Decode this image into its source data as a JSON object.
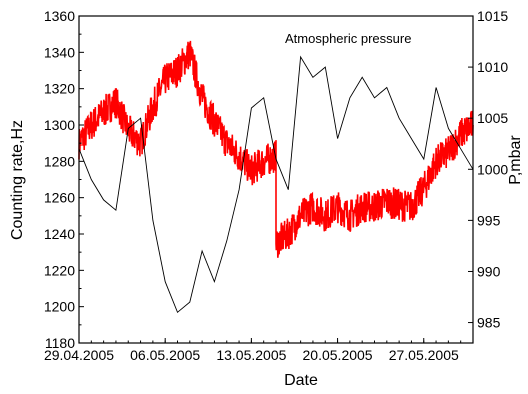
{
  "chart_data": {
    "type": "line",
    "title": "",
    "xlabel": "Date",
    "ylabel_left": "Counting rate,Hz",
    "ylabel_right": "P,mbar",
    "annotation": "Atmospheric pressure",
    "xlim": [
      "2005-04-29",
      "2005-05-31"
    ],
    "ylim_left": [
      1180,
      1360
    ],
    "ylim_right": [
      983,
      1015
    ],
    "x_tick_labels": [
      "29.04.2005",
      "06.05.2005",
      "13.05.2005",
      "20.05.2005",
      "27.05.2005"
    ],
    "x_ticks": [
      "2005-04-29",
      "2005-05-06",
      "2005-05-13",
      "2005-05-20",
      "2005-05-27"
    ],
    "y_left_ticks": [
      1180,
      1200,
      1220,
      1240,
      1260,
      1280,
      1300,
      1320,
      1340,
      1360
    ],
    "y_right_ticks": [
      985,
      990,
      995,
      1000,
      1005,
      1010,
      1015
    ],
    "grid": false,
    "series": [
      {
        "axis": "left",
        "color": "#ff0000",
        "noise": 9,
        "x": [
          "2005-04-29",
          "2005-04-30",
          "2005-05-01",
          "2005-05-02",
          "2005-05-03",
          "2005-05-04",
          "2005-05-05",
          "2005-05-06",
          "2005-05-07",
          "2005-05-08",
          "2005-05-09",
          "2005-05-10",
          "2005-05-11",
          "2005-05-12",
          "2005-05-13",
          "2005-05-14",
          "2005-05-15",
          "2005-05-15",
          "2005-05-16",
          "2005-05-17",
          "2005-05-18",
          "2005-05-19",
          "2005-05-20",
          "2005-05-21",
          "2005-05-22",
          "2005-05-23",
          "2005-05-24",
          "2005-05-25",
          "2005-05-26",
          "2005-05-27",
          "2005-05-28",
          "2005-05-29",
          "2005-05-30",
          "2005-05-31"
        ],
        "y": [
          1290,
          1300,
          1307,
          1313,
          1297,
          1290,
          1310,
          1325,
          1330,
          1340,
          1315,
          1302,
          1290,
          1283,
          1275,
          1280,
          1283,
          1235,
          1240,
          1250,
          1255,
          1250,
          1255,
          1250,
          1255,
          1255,
          1258,
          1256,
          1255,
          1265,
          1280,
          1285,
          1295,
          1300
        ]
      },
      {
        "axis": "right",
        "name": "Atmospheric pressure",
        "color": "#000000",
        "x": [
          "2005-04-29",
          "2005-04-30",
          "2005-05-01",
          "2005-05-02",
          "2005-05-03",
          "2005-05-04",
          "2005-05-05",
          "2005-05-06",
          "2005-05-07",
          "2005-05-08",
          "2005-05-09",
          "2005-05-10",
          "2005-05-11",
          "2005-05-12",
          "2005-05-13",
          "2005-05-14",
          "2005-05-15",
          "2005-05-16",
          "2005-05-17",
          "2005-05-18",
          "2005-05-19",
          "2005-05-20",
          "2005-05-21",
          "2005-05-22",
          "2005-05-23",
          "2005-05-24",
          "2005-05-25",
          "2005-05-26",
          "2005-05-27",
          "2005-05-28",
          "2005-05-29",
          "2005-05-30",
          "2005-05-31"
        ],
        "y": [
          1002,
          999,
          997,
          996,
          1004,
          1005,
          995,
          989,
          986,
          987,
          992,
          989,
          993,
          998,
          1006,
          1007,
          1001,
          998,
          1011,
          1009,
          1010,
          1003,
          1007,
          1009,
          1007,
          1008,
          1005,
          1003,
          1001,
          1008,
          1004,
          1002,
          1000
        ]
      }
    ]
  }
}
